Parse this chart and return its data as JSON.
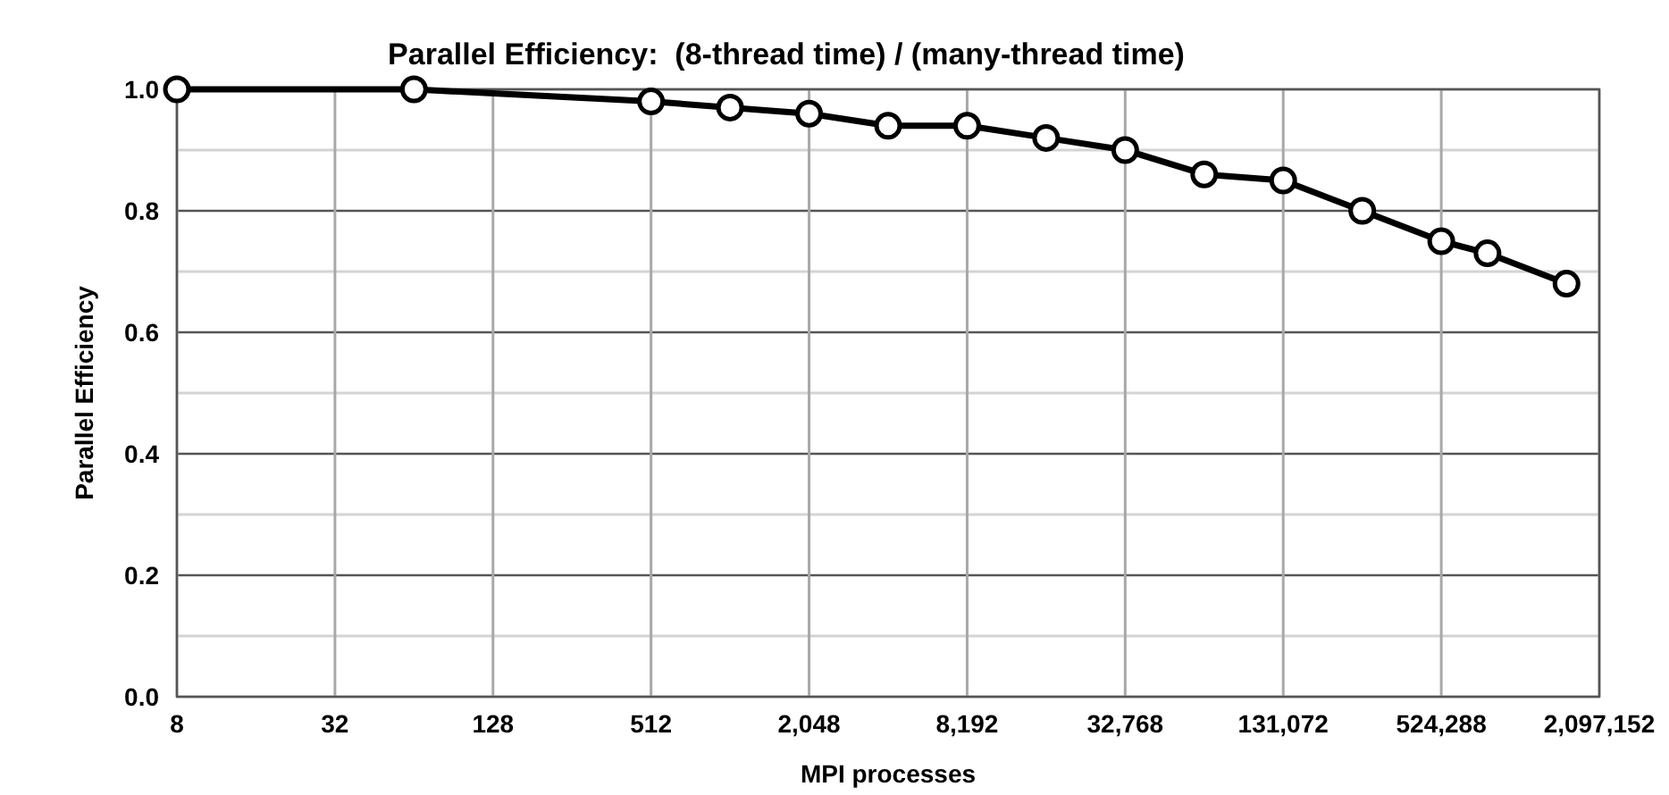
{
  "chart_data": {
    "type": "line",
    "title": "Parallel Efficiency:  (8-thread time) / (many-thread time)",
    "xlabel": "MPI processes",
    "ylabel": "Parallel Efficiency",
    "x": [
      8,
      64,
      512,
      1024,
      2048,
      4096,
      8192,
      16384,
      32768,
      65536,
      131072,
      262144,
      524288,
      786432,
      1572864
    ],
    "series": [
      {
        "color": "#000000",
        "values": [
          1.0,
          1.0,
          0.98,
          0.97,
          0.96,
          0.94,
          0.94,
          0.92,
          0.9,
          0.86,
          0.85,
          0.8,
          0.75,
          0.73,
          0.68
        ]
      }
    ],
    "xlim": [
      8,
      2097152
    ],
    "xticks": [
      {
        "value": 8,
        "label": "8"
      },
      {
        "value": 32,
        "label": "32"
      },
      {
        "value": 128,
        "label": "128"
      },
      {
        "value": 512,
        "label": "512"
      },
      {
        "value": 2048,
        "label": "2,048"
      },
      {
        "value": 8192,
        "label": "8,192"
      },
      {
        "value": 32768,
        "label": "32,768"
      },
      {
        "value": 131072,
        "label": "131,072"
      },
      {
        "value": 524288,
        "label": "524,288"
      },
      {
        "value": 2097152,
        "label": "2,097,152"
      }
    ],
    "ylim": [
      0,
      1
    ],
    "yticks": [
      {
        "value": 0,
        "label": "0.0"
      },
      {
        "value": 0.1,
        "label": null
      },
      {
        "value": 0.2,
        "label": "0.2"
      },
      {
        "value": 0.3,
        "label": null
      },
      {
        "value": 0.4,
        "label": "0.4"
      },
      {
        "value": 0.5,
        "label": null
      },
      {
        "value": 0.6,
        "label": "0.6"
      },
      {
        "value": 0.7,
        "label": null
      },
      {
        "value": 0.8,
        "label": "0.8"
      },
      {
        "value": 0.9,
        "label": null
      },
      {
        "value": 1,
        "label": "1.0"
      }
    ],
    "log": "x",
    "grid": true,
    "marker": "circle",
    "line_style": "solid"
  }
}
